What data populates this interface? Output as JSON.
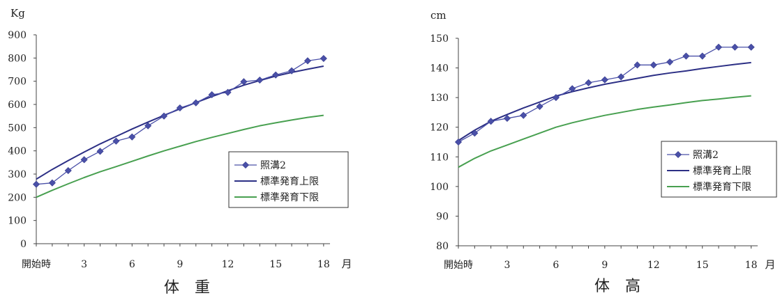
{
  "colors": {
    "series": "#4a50a8",
    "upper": "#2c2f85",
    "lower": "#48a050"
  },
  "chart_data": [
    {
      "type": "line",
      "title": "体　重",
      "ylabel": "Kg",
      "xunit": "月",
      "x": [
        0,
        1,
        2,
        3,
        4,
        5,
        6,
        7,
        8,
        9,
        10,
        11,
        12,
        13,
        14,
        15,
        16,
        17,
        18
      ],
      "xticks": [
        0,
        3,
        6,
        9,
        12,
        15,
        18
      ],
      "xtick_labels": [
        "開始時",
        "3",
        "6",
        "9",
        "12",
        "15",
        "18"
      ],
      "ylim": [
        0,
        900
      ],
      "yticks": [
        0,
        100,
        200,
        300,
        400,
        500,
        600,
        700,
        800,
        900
      ],
      "legend": "right",
      "series": [
        {
          "name": "照溝2",
          "marker": "diamond",
          "values": [
            256,
            262,
            315,
            362,
            398,
            442,
            460,
            508,
            550,
            585,
            607,
            642,
            652,
            698,
            705,
            727,
            745,
            788,
            798
          ]
        },
        {
          "name": "標準発育上限",
          "values": [
            278,
            320,
            358,
            395,
            430,
            462,
            494,
            524,
            553,
            581,
            608,
            634,
            659,
            683,
            703,
            722,
            738,
            752,
            765
          ]
        },
        {
          "name": "標準発育下限",
          "values": [
            200,
            230,
            258,
            285,
            310,
            332,
            355,
            378,
            400,
            420,
            440,
            458,
            475,
            492,
            508,
            521,
            533,
            544,
            553
          ]
        }
      ]
    },
    {
      "type": "line",
      "title": "体　高",
      "ylabel": "cm",
      "xunit": "月",
      "x": [
        0,
        1,
        2,
        3,
        4,
        5,
        6,
        7,
        8,
        9,
        10,
        11,
        12,
        13,
        14,
        15,
        16,
        17,
        18
      ],
      "xticks": [
        0,
        3,
        6,
        9,
        12,
        15,
        18
      ],
      "xtick_labels": [
        "開始時",
        "3",
        "6",
        "9",
        "12",
        "15",
        "18"
      ],
      "ylim": [
        80,
        150
      ],
      "yticks": [
        80,
        90,
        100,
        110,
        120,
        130,
        140,
        150
      ],
      "legend": "right",
      "series": [
        {
          "name": "照溝2",
          "marker": "diamond",
          "values": [
            115,
            118,
            122,
            123,
            124,
            127,
            130,
            133,
            135,
            136,
            137,
            141,
            141,
            142,
            144,
            144,
            147,
            147,
            147
          ]
        },
        {
          "name": "標準発育上限",
          "values": [
            115.5,
            119,
            122,
            124.3,
            126.5,
            128.5,
            130.5,
            132,
            133.3,
            134.5,
            135.5,
            136.5,
            137.5,
            138.3,
            139,
            139.8,
            140.5,
            141.2,
            141.8
          ]
        },
        {
          "name": "標準発育下限",
          "values": [
            106.5,
            109.5,
            112,
            114,
            116,
            118,
            120,
            121.5,
            122.8,
            124,
            125,
            126,
            126.8,
            127.5,
            128.3,
            129,
            129.5,
            130.1,
            130.6
          ]
        }
      ]
    }
  ]
}
